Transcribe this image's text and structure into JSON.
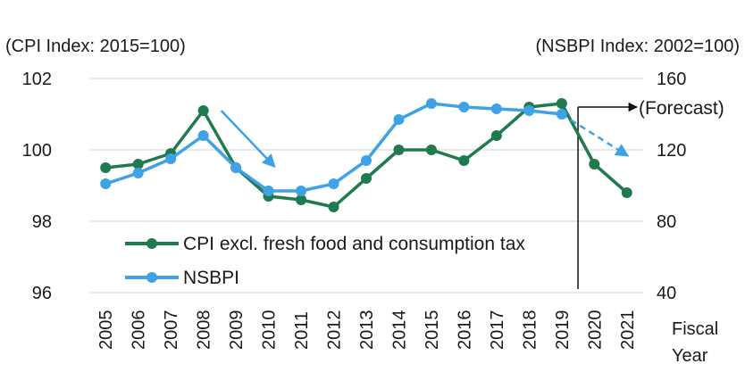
{
  "chart_data": {
    "type": "line",
    "left_axis_title": "(CPI Index: 2015=100)",
    "right_axis_title": "(NSBPI Index: 2002=100)",
    "x_axis_title": [
      "Fiscal",
      "Year"
    ],
    "categories": [
      "2005",
      "2006",
      "2007",
      "2008",
      "2009",
      "2010",
      "2011",
      "2012",
      "2013",
      "2014",
      "2015",
      "2016",
      "2017",
      "2018",
      "2019",
      "2020",
      "2021"
    ],
    "left_ylim": [
      96,
      102
    ],
    "left_ticks": [
      "96",
      "98",
      "100",
      "102"
    ],
    "right_ylim": [
      40,
      160
    ],
    "right_ticks": [
      "40",
      "80",
      "120",
      "160"
    ],
    "grid": true,
    "series": [
      {
        "name": "CPI excl. fresh food and consumption tax",
        "axis": "left",
        "color": "#1f7a4d",
        "values": [
          99.5,
          99.6,
          99.9,
          101.1,
          99.5,
          98.7,
          98.6,
          98.4,
          99.2,
          100.0,
          100.0,
          99.7,
          100.4,
          101.2,
          101.3,
          99.6,
          98.8
        ]
      },
      {
        "name": "NSBPI",
        "axis": "right",
        "color": "#3fa2e6",
        "values": [
          101,
          107,
          115,
          128,
          110,
          97,
          97,
          101,
          114,
          137,
          146,
          144,
          143,
          142,
          140,
          null,
          null
        ],
        "forecast": {
          "from": "2019",
          "to": "2021",
          "value_end": 117
        }
      }
    ],
    "annotations": [
      {
        "text": "(Forecast)",
        "kind": "forecast-label"
      },
      {
        "kind": "trend-arrow",
        "from": {
          "x": "2008",
          "y": 101.1
        },
        "to": {
          "x": "2010",
          "y": 99.8
        },
        "axis": "left"
      }
    ],
    "legend_position": "bottom-left"
  }
}
